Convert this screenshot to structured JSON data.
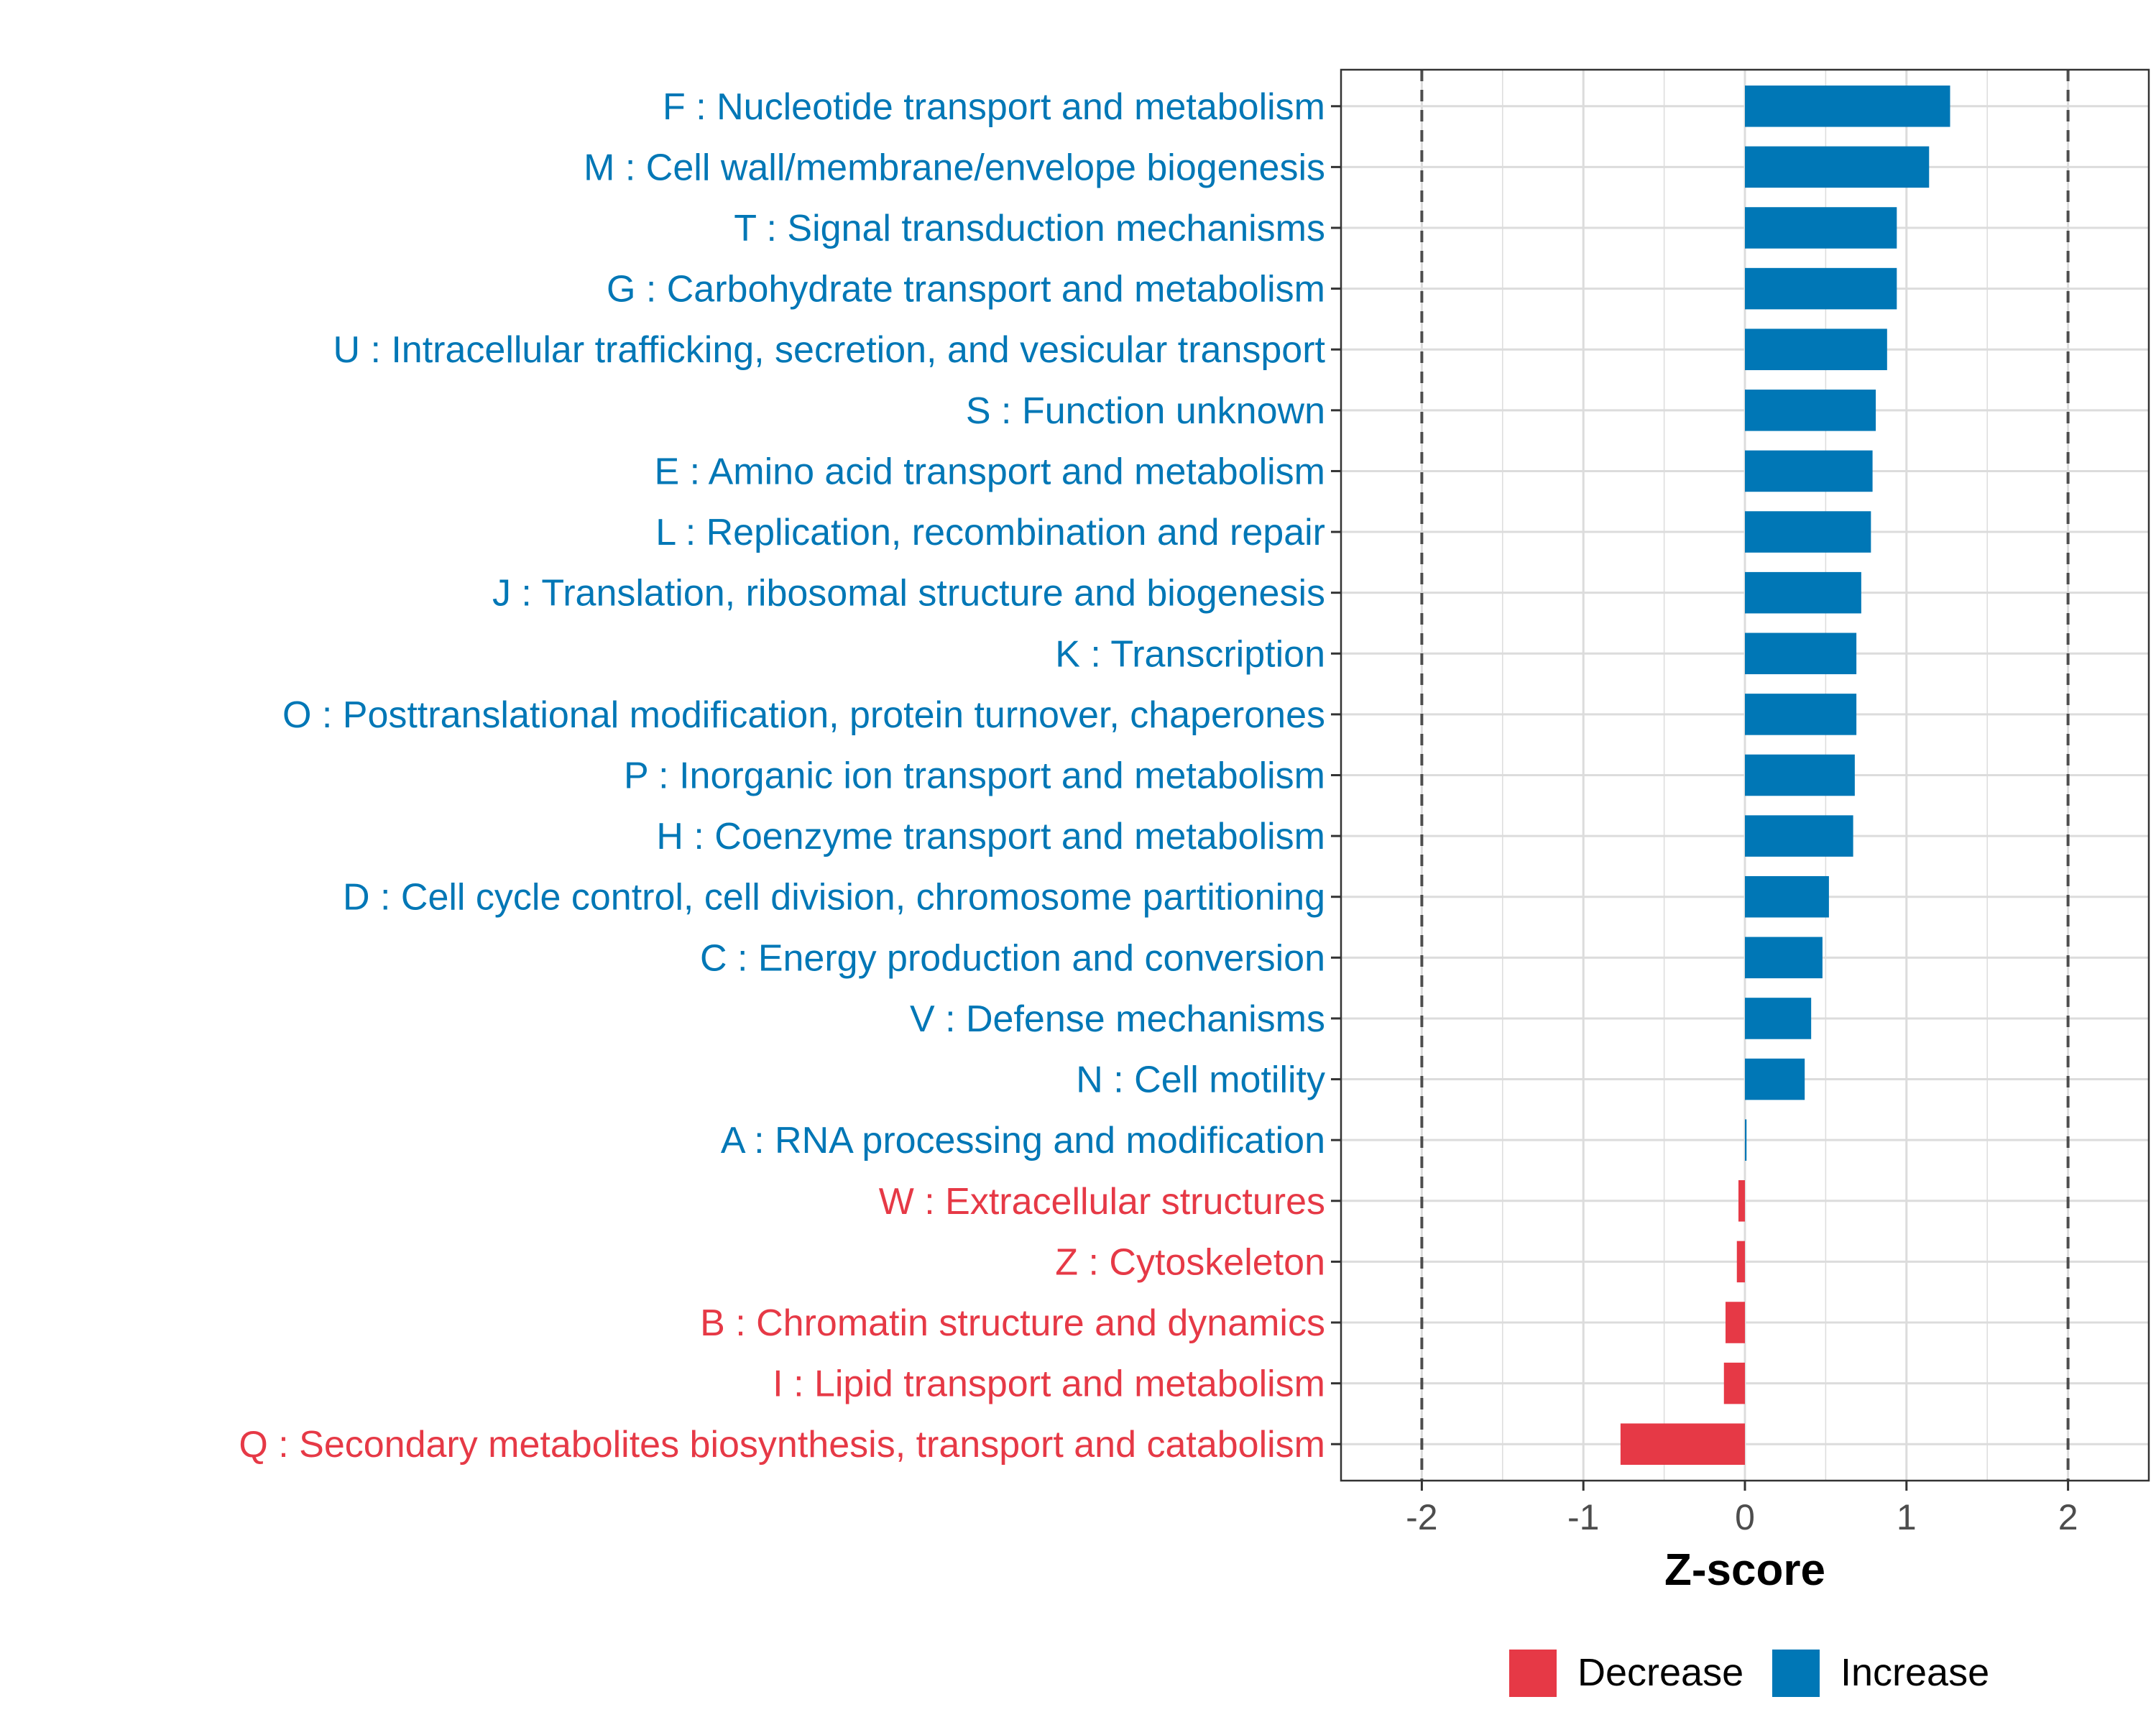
{
  "chart_data": {
    "type": "bar",
    "orientation": "horizontal",
    "title": "",
    "xlabel": "Z-score",
    "ylabel": "",
    "xlim": [
      -2.5,
      2.5
    ],
    "x_ticks": [
      "-2",
      "-1",
      "0",
      "1",
      "2"
    ],
    "x_tick_values": [
      -2,
      -1,
      0,
      1,
      2
    ],
    "reference_lines": [
      -2,
      2
    ],
    "grid": true,
    "legend_position": "bottom",
    "legend": [
      {
        "name": "Decrease",
        "color": "#E63946"
      },
      {
        "name": "Increase",
        "color": "#0077B6"
      }
    ],
    "categories": [
      "F : Nucleotide transport and metabolism",
      "M : Cell wall/membrane/envelope biogenesis",
      "T : Signal transduction mechanisms",
      "G : Carbohydrate transport and metabolism",
      "U : Intracellular trafficking, secretion, and vesicular transport",
      "S : Function unknown",
      "E : Amino acid transport and metabolism",
      "L : Replication, recombination and repair",
      "J : Translation, ribosomal structure and biogenesis",
      "K : Transcription",
      "O : Posttranslational modification, protein turnover, chaperones",
      "P : Inorganic ion transport and metabolism",
      "H : Coenzyme transport and metabolism",
      "D : Cell cycle control, cell division, chromosome partitioning",
      "C : Energy production and conversion",
      "V : Defense mechanisms",
      "N : Cell motility",
      "A : RNA processing and modification",
      "W : Extracellular structures",
      "Z : Cytoskeleton",
      "B : Chromatin structure and dynamics",
      "I : Lipid transport and metabolism",
      "Q : Secondary metabolites biosynthesis, transport and catabolism"
    ],
    "values": [
      1.27,
      1.14,
      0.94,
      0.94,
      0.88,
      0.81,
      0.79,
      0.78,
      0.72,
      0.69,
      0.69,
      0.68,
      0.67,
      0.52,
      0.48,
      0.41,
      0.37,
      0.01,
      -0.04,
      -0.05,
      -0.12,
      -0.13,
      -0.77
    ],
    "groups": [
      "Increase",
      "Increase",
      "Increase",
      "Increase",
      "Increase",
      "Increase",
      "Increase",
      "Increase",
      "Increase",
      "Increase",
      "Increase",
      "Increase",
      "Increase",
      "Increase",
      "Increase",
      "Increase",
      "Increase",
      "Increase",
      "Decrease",
      "Decrease",
      "Decrease",
      "Decrease",
      "Decrease"
    ]
  }
}
